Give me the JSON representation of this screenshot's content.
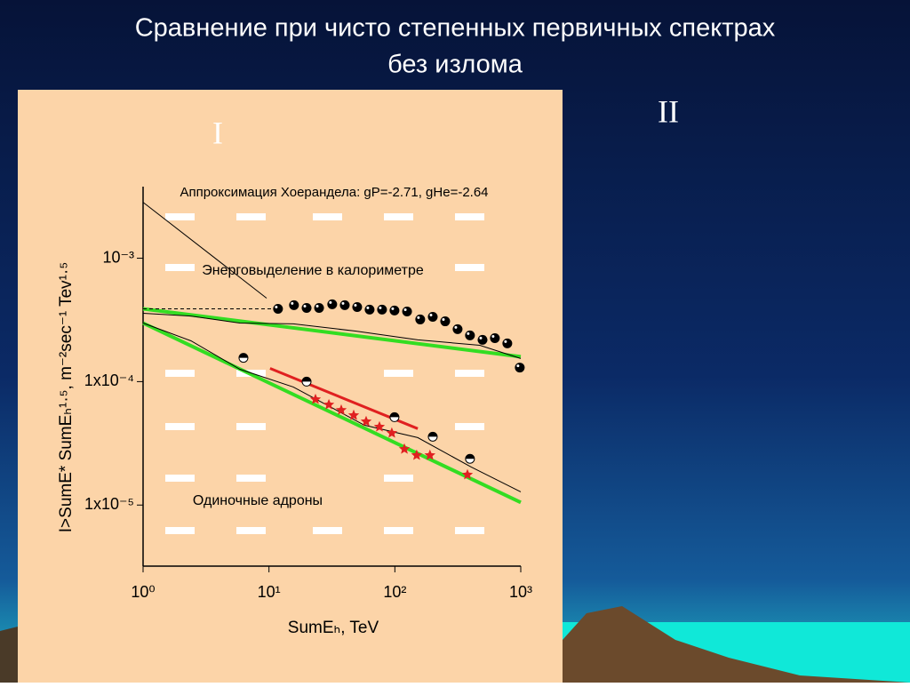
{
  "slide": {
    "title_lines": [
      "Сравнение при чисто степенных первичных спектрах",
      "без излома"
    ],
    "panel_label_left": "I",
    "panel_label_right": "II"
  },
  "chart_data": {
    "type": "scatter",
    "x_label": "SumEₕ, TeV",
    "y_label": "I>SumE* SumEₕ¹·⁵, m⁻²sec⁻¹ Tev¹·⁵",
    "annotations": [
      "Аппроксимация Хоерандела: gP=-2.71, gHe=-2.64",
      "Энерговыделение в калориметре",
      "Одиночные адроны"
    ],
    "log_x": true,
    "log_y": true,
    "xlim": [
      1,
      1000
    ],
    "ylim": [
      3.2e-06,
      0.0038
    ],
    "xticks": [
      {
        "value": 1,
        "label": "10⁰"
      },
      {
        "value": 10,
        "label": "10¹"
      },
      {
        "value": 100,
        "label": "10²"
      },
      {
        "value": 1000,
        "label": "10³"
      }
    ],
    "yticks": [
      {
        "value": 1e-05,
        "label": "1x10⁻⁵"
      },
      {
        "value": 0.0001,
        "label": "1x10⁻⁴"
      },
      {
        "value": 0.001,
        "label": "10⁻³"
      }
    ],
    "series": [
      {
        "marker": "line",
        "color": "#33dd22",
        "width": 4,
        "x": [
          1,
          1000
        ],
        "values": [
          0.000389,
          0.000159
        ]
      },
      {
        "marker": "line",
        "color": "#33dd22",
        "width": 4,
        "x": [
          1,
          1000
        ],
        "values": [
          0.000298,
          1.05e-05
        ]
      },
      {
        "marker": "line",
        "color": "#000000",
        "width": 1,
        "x": [
          1,
          2.4,
          5.88,
          15.6,
          48.6,
          152,
          473,
          1000
        ],
        "values": [
          0.000358,
          0.00034,
          0.000298,
          0.000294,
          0.000257,
          0.000218,
          0.000197,
          0.000154
        ]
      },
      {
        "marker": "line",
        "color": "#000000",
        "width": 1,
        "x": [
          1,
          2.4,
          5.88,
          15.6,
          57.2,
          152,
          402,
          1000
        ],
        "values": [
          0.000298,
          0.000214,
          0.000126,
          9.06e-05,
          4.44e-05,
          3.52e-05,
          2.04e-05,
          1.28e-05
        ]
      },
      {
        "marker": "line",
        "color": "#000000",
        "width": 1,
        "x": [
          1,
          9.57
        ],
        "values": [
          0.00284,
          0.000474
        ]
      },
      {
        "marker": "dashed",
        "color": "#000000",
        "width": 1,
        "x": [
          1,
          11.8
        ],
        "values": [
          0.000389,
          0.000389
        ]
      },
      {
        "marker": "line",
        "color": "#e02020",
        "width": 3,
        "x": [
          10.2,
          152
        ],
        "values": [
          0.000128,
          4.16e-05
        ]
      },
      {
        "marker": "circle",
        "color": "#000000",
        "x": [
          11.8,
          15.8,
          19.9,
          25.0,
          31.8,
          40.0,
          50.2,
          63.0,
          79.1,
          99.3,
          125,
          159,
          200,
          251,
          315,
          395,
          497,
          623,
          782,
          982
        ],
        "values": [
          0.000389,
          0.000416,
          0.000395,
          0.000395,
          0.000423,
          0.000416,
          0.000402,
          0.000383,
          0.000383,
          0.000377,
          0.00037,
          0.000319,
          0.000335,
          0.000308,
          0.000266,
          0.000237,
          0.000218,
          0.000225,
          0.000204,
          0.00013
        ]
      },
      {
        "marker": "half-circle",
        "color": "#000000",
        "x": [
          6.27,
          19.9,
          99.3,
          200,
          395
        ],
        "values": [
          0.000156,
          0.0001,
          5.15e-05,
          3.58e-05,
          2.37e-05
        ]
      },
      {
        "marker": "star",
        "color": "#e02020",
        "x": [
          23.4,
          29.9,
          37.5,
          47.1,
          59.1,
          75.4,
          94.6,
          119,
          149,
          190,
          377
        ],
        "values": [
          7.18e-05,
          6.5e-05,
          5.88e-05,
          5.33e-05,
          4.75e-05,
          4.3e-05,
          3.83e-05,
          2.84e-05,
          2.53e-05,
          2.53e-05,
          1.76e-05
        ]
      }
    ]
  }
}
